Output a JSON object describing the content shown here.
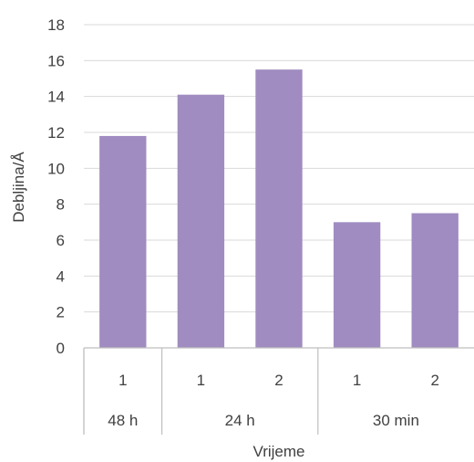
{
  "chart_data": {
    "type": "bar",
    "title": "",
    "xlabel": "Vrijeme",
    "ylabel": "Debljina/Å",
    "ylim": [
      0,
      18
    ],
    "ytick_step": 2,
    "yticks": [
      "0",
      "2",
      "4",
      "6",
      "8",
      "10",
      "12",
      "14",
      "16",
      "18"
    ],
    "grid": true,
    "legend": "none",
    "bar_color": "#a08cc0",
    "groups": [
      {
        "label": "48 h",
        "categories": [
          "1"
        ]
      },
      {
        "label": "24 h",
        "categories": [
          "1",
          "2"
        ]
      },
      {
        "label": "30 min",
        "categories": [
          "1",
          "2"
        ]
      }
    ],
    "series": [
      {
        "values": [
          11.8,
          14.1,
          15.5,
          7.0,
          7.5
        ]
      }
    ]
  }
}
